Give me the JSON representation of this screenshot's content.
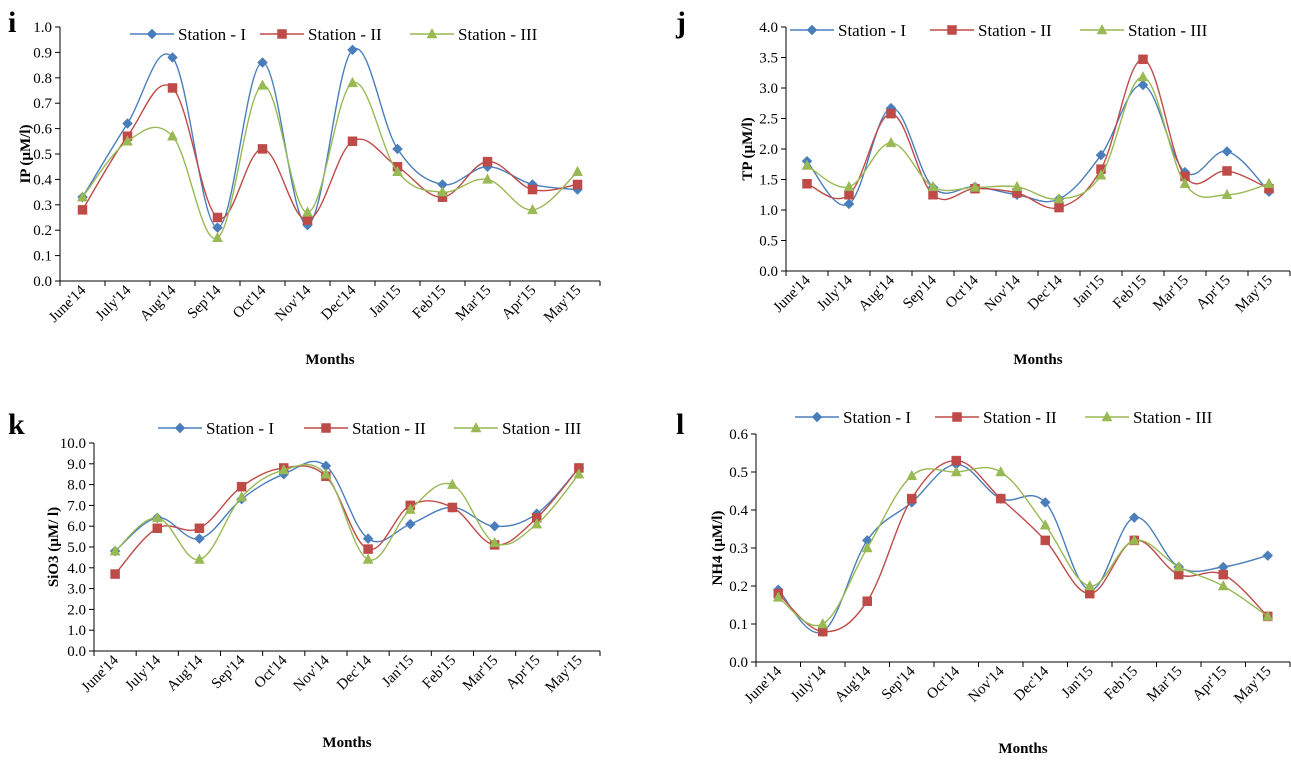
{
  "chart_data": [
    {
      "panel": "i",
      "type": "line",
      "categories": [
        "June'14",
        "July'14",
        "Aug'14",
        "Sep'14",
        "Oct'14",
        "Nov'14",
        "Dec'14",
        "Jan'15",
        "Feb'15",
        "Mar'15",
        "Apr'15",
        "May'15"
      ],
      "xlabel": "Months",
      "ylabel": "IP (µM/l)",
      "ylim": [
        0,
        1.0
      ],
      "yticks": [
        "0.0",
        "0.1",
        "0.2",
        "0.3",
        "0.4",
        "0.5",
        "0.6",
        "0.7",
        "0.8",
        "0.9",
        "1.0"
      ],
      "legend": "top",
      "grid": false,
      "series": [
        {
          "name": "Station - I",
          "color": "#4a7ebb",
          "marker": "diamond",
          "values": [
            0.33,
            0.62,
            0.88,
            0.21,
            0.86,
            0.22,
            0.91,
            0.52,
            0.38,
            0.45,
            0.38,
            0.36
          ]
        },
        {
          "name": "Station - II",
          "color": "#be4b48",
          "marker": "square",
          "values": [
            0.28,
            0.57,
            0.76,
            0.25,
            0.52,
            0.24,
            0.55,
            0.45,
            0.33,
            0.47,
            0.36,
            0.38
          ]
        },
        {
          "name": "Station - III",
          "color": "#98b954",
          "marker": "triangle",
          "values": [
            0.33,
            0.55,
            0.57,
            0.17,
            0.77,
            0.27,
            0.78,
            0.43,
            0.35,
            0.4,
            0.28,
            0.43
          ]
        }
      ]
    },
    {
      "panel": "j",
      "type": "line",
      "categories": [
        "June'14",
        "July'14",
        "Aug'14",
        "Sep'14",
        "Oct'14",
        "Nov'14",
        "Dec'14",
        "Jan'15",
        "Feb'15",
        "Mar'15",
        "Apr'15",
        "May'15"
      ],
      "xlabel": "Months",
      "ylabel": "TP (µM/l)",
      "ylim": [
        0,
        4.0
      ],
      "yticks": [
        "0.0",
        "0.5",
        "1.0",
        "1.5",
        "2.0",
        "2.5",
        "3.0",
        "3.5",
        "4.0"
      ],
      "legend": "top",
      "grid": false,
      "series": [
        {
          "name": "Station - I",
          "color": "#4a7ebb",
          "marker": "diamond",
          "values": [
            1.8,
            1.1,
            2.67,
            1.37,
            1.38,
            1.25,
            1.18,
            1.9,
            3.05,
            1.62,
            1.96,
            1.3
          ]
        },
        {
          "name": "Station - II",
          "color": "#be4b48",
          "marker": "square",
          "values": [
            1.43,
            1.25,
            2.58,
            1.25,
            1.35,
            1.28,
            1.04,
            1.67,
            3.47,
            1.55,
            1.64,
            1.35
          ]
        },
        {
          "name": "Station - III",
          "color": "#98b954",
          "marker": "triangle",
          "values": [
            1.73,
            1.38,
            2.1,
            1.38,
            1.37,
            1.38,
            1.18,
            1.57,
            3.18,
            1.43,
            1.25,
            1.43
          ]
        }
      ]
    },
    {
      "panel": "k",
      "type": "line",
      "categories": [
        "June'14",
        "July'14",
        "Aug'14",
        "Sep'14",
        "Oct'14",
        "Nov'14",
        "Dec'14",
        "Jan'15",
        "Feb'15",
        "Mar'15",
        "Apr'15",
        "May'15"
      ],
      "xlabel": "Months",
      "ylabel": "SiO3 (µM/ l)",
      "ylim": [
        0,
        10.0
      ],
      "yticks": [
        "0.0",
        "1.0",
        "2.0",
        "3.0",
        "4.0",
        "5.0",
        "6.0",
        "7.0",
        "8.0",
        "9.0",
        "10.0"
      ],
      "legend": "top",
      "grid": false,
      "series": [
        {
          "name": "Station - I",
          "color": "#4a7ebb",
          "marker": "diamond",
          "values": [
            4.8,
            6.4,
            5.4,
            7.3,
            8.5,
            8.9,
            5.4,
            6.1,
            6.9,
            6.0,
            6.6,
            8.8
          ]
        },
        {
          "name": "Station - II",
          "color": "#be4b48",
          "marker": "square",
          "values": [
            3.7,
            5.9,
            5.9,
            7.9,
            8.8,
            8.4,
            4.9,
            7.0,
            6.9,
            5.1,
            6.4,
            8.8
          ]
        },
        {
          "name": "Station - III",
          "color": "#98b954",
          "marker": "triangle",
          "values": [
            4.8,
            6.4,
            4.4,
            7.4,
            8.7,
            8.5,
            4.4,
            6.8,
            8.0,
            5.2,
            6.1,
            8.5
          ]
        }
      ]
    },
    {
      "panel": "l",
      "type": "line",
      "categories": [
        "June'14",
        "July'14",
        "Aug'14",
        "Sep'14",
        "Oct'14",
        "Nov'14",
        "Dec'14",
        "Jan'15",
        "Feb'15",
        "Mar'15",
        "Apr'15",
        "May'15"
      ],
      "xlabel": "Months",
      "ylabel": "NH4 (µM/l)",
      "ylim": [
        0,
        0.6
      ],
      "yticks": [
        "0.0",
        "0.1",
        "0.2",
        "0.3",
        "0.4",
        "0.5",
        "0.6"
      ],
      "legend": "top",
      "grid": false,
      "series": [
        {
          "name": "Station - I",
          "color": "#4a7ebb",
          "marker": "diamond",
          "values": [
            0.19,
            0.08,
            0.32,
            0.42,
            0.52,
            0.43,
            0.42,
            0.19,
            0.38,
            0.25,
            0.25,
            0.28
          ]
        },
        {
          "name": "Station - II",
          "color": "#be4b48",
          "marker": "square",
          "values": [
            0.18,
            0.08,
            0.16,
            0.43,
            0.53,
            0.43,
            0.32,
            0.18,
            0.32,
            0.23,
            0.23,
            0.12
          ]
        },
        {
          "name": "Station - III",
          "color": "#98b954",
          "marker": "triangle",
          "values": [
            0.17,
            0.1,
            0.3,
            0.49,
            0.5,
            0.5,
            0.36,
            0.2,
            0.32,
            0.25,
            0.2,
            0.12
          ]
        }
      ]
    }
  ]
}
